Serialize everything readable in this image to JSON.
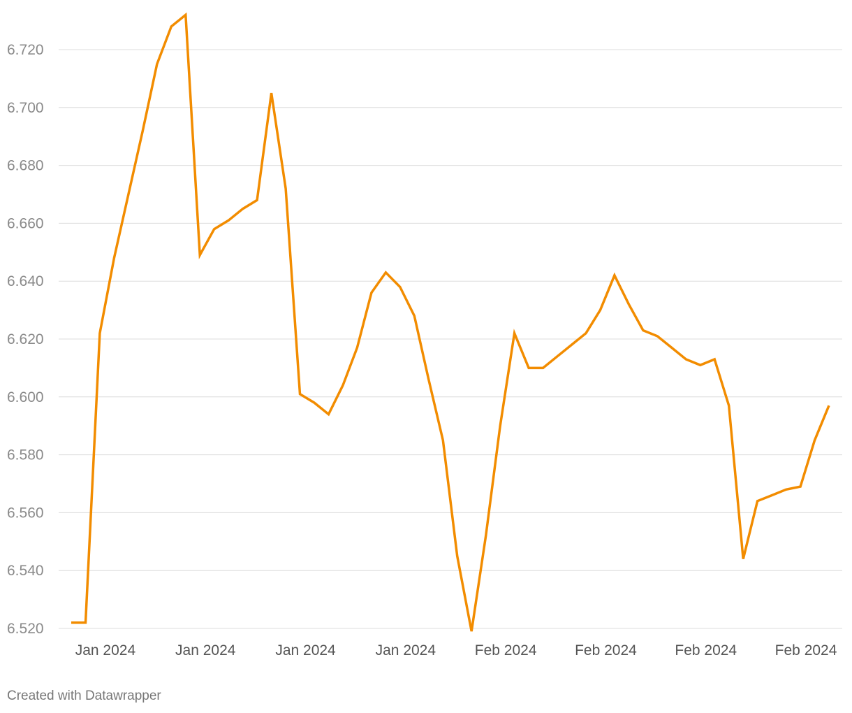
{
  "chart_data": {
    "type": "line",
    "title": "",
    "xlabel": "",
    "ylabel": "",
    "ylim": [
      6.52,
      6.732
    ],
    "y_ticks": [
      6.52,
      6.54,
      6.56,
      6.58,
      6.6,
      6.62,
      6.64,
      6.66,
      6.68,
      6.7,
      6.72
    ],
    "y_tick_labels": [
      "6.520",
      "6.540",
      "6.560",
      "6.580",
      "6.600",
      "6.620",
      "6.640",
      "6.660",
      "6.680",
      "6.700",
      "6.720"
    ],
    "x_tick_labels": [
      "Jan 2024",
      "Jan 2024",
      "Jan 2024",
      "Jan 2024",
      "Feb 2024",
      "Feb 2024",
      "Feb 2024",
      "Feb 2024"
    ],
    "x_tick_index": [
      2,
      9,
      16,
      23,
      30,
      37,
      44,
      51
    ],
    "line_color": "#f28c00",
    "grid": true,
    "values": [
      6.522,
      6.522,
      6.622,
      6.648,
      6.67,
      6.692,
      6.715,
      6.728,
      6.732,
      6.649,
      6.658,
      6.661,
      6.665,
      6.668,
      6.705,
      6.672,
      6.601,
      6.598,
      6.594,
      6.604,
      6.617,
      6.636,
      6.643,
      6.638,
      6.628,
      6.606,
      6.585,
      6.545,
      6.519,
      6.552,
      6.59,
      6.622,
      6.61,
      6.61,
      6.614,
      6.618,
      6.622,
      6.63,
      6.642,
      6.632,
      6.623,
      6.621,
      6.617,
      6.613,
      6.611,
      6.613,
      6.597,
      6.544,
      6.564,
      6.566,
      6.568,
      6.569,
      6.585,
      6.597
    ]
  },
  "footer": {
    "credit": "Created with Datawrapper"
  }
}
